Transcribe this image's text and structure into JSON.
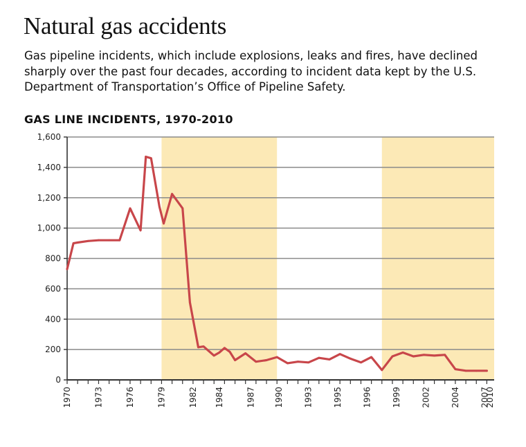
{
  "header": {
    "title": "Natural gas accidents",
    "subtitle": "Gas pipeline incidents, which include explosions, leaks and fires, have declined sharply over the past four decades, according to incident data kept by the U.S. Department of Transportation’s Office of Pipeline Safety."
  },
  "colors": {
    "line": "#c8464a",
    "shade": "#fce9b6",
    "grid": "#8a8a8a",
    "axis": "#333333"
  },
  "chart_data": {
    "type": "line",
    "title": "GAS LINE INCIDENTS, 1970-2010",
    "xlabel": "",
    "ylabel": "",
    "xlim": [
      1970,
      2010.7
    ],
    "ylim": [
      0,
      1600
    ],
    "yticks": [
      0,
      200,
      400,
      600,
      800,
      1000,
      1200,
      1400,
      1600
    ],
    "ytick_labels": [
      "0",
      "200",
      "400",
      "600",
      "800",
      "1,000",
      "1,200",
      "1,400",
      "1,600"
    ],
    "xticks": [
      1970,
      1971,
      1972,
      1973,
      1974,
      1975,
      1976,
      1977,
      1978,
      1979,
      1980,
      1981,
      1982,
      1983,
      1984,
      1985,
      1986,
      1987,
      1988,
      1989,
      1990,
      1991,
      1992,
      1993,
      1994,
      1995,
      1996,
      1997,
      1998,
      1999,
      2000,
      2001,
      2002,
      2003,
      2004,
      2005,
      2006,
      2007,
      2008,
      2009,
      2010
    ],
    "xtick_labels": [
      {
        "x": 1970,
        "label": "1970"
      },
      {
        "x": 1973,
        "label": "1973"
      },
      {
        "x": 1976,
        "label": "1976"
      },
      {
        "x": 1979,
        "label": "1979"
      },
      {
        "x": 1982,
        "label": "1982"
      },
      {
        "x": 1984.5,
        "label": "1984"
      },
      {
        "x": 1987.5,
        "label": "1987"
      },
      {
        "x": 1990.2,
        "label": "1990"
      },
      {
        "x": 1993,
        "label": "1993"
      },
      {
        "x": 1995.8,
        "label": "1995"
      },
      {
        "x": 1998.6,
        "label": "1996"
      },
      {
        "x": 2001.4,
        "label": "1999"
      },
      {
        "x": 2004.2,
        "label": "2002"
      },
      {
        "x": 2007,
        "label": "2004"
      },
      {
        "x": 2009.8,
        "label": "2007"
      },
      {
        "x": 2012.6,
        "label": "2010"
      }
    ],
    "grid": "horizontal",
    "shaded_ranges": [
      [
        1979,
        1990
      ],
      [
        2000,
        2010.7
      ]
    ],
    "series": [
      {
        "x": [
          1970,
          1970.6,
          1971,
          1972,
          1973,
          1974,
          1975,
          1976,
          1977,
          1977.5,
          1978,
          1978.8,
          1979.2,
          1980,
          1981,
          1981.7,
          1982.5,
          1983,
          1984,
          1984.5,
          1985,
          1985.5,
          1986,
          1987,
          1988,
          1989,
          1990,
          1991,
          1992,
          1993,
          1994,
          1995,
          1996,
          1997,
          1998,
          1999,
          2000,
          2001,
          2002,
          2003,
          2004,
          2005,
          2006,
          2007,
          2008,
          2009,
          2010
        ],
        "y": [
          730,
          900,
          905,
          915,
          920,
          920,
          920,
          1130,
          985,
          1470,
          1460,
          1140,
          1030,
          1225,
          1130,
          510,
          215,
          220,
          160,
          180,
          210,
          185,
          130,
          175,
          120,
          130,
          150,
          110,
          120,
          115,
          145,
          135,
          170,
          140,
          115,
          150,
          65,
          155,
          180,
          155,
          165,
          160,
          165,
          70,
          60,
          60,
          60
        ]
      }
    ]
  }
}
